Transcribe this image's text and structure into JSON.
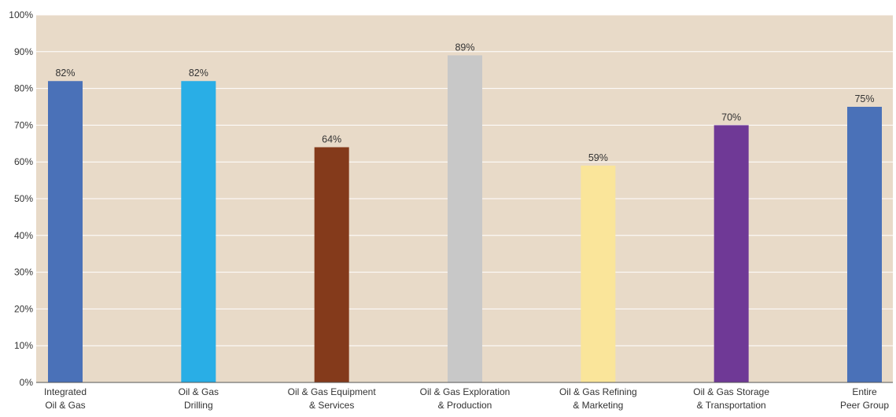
{
  "chart_data": {
    "type": "bar",
    "title": "",
    "xlabel": "",
    "ylabel": "",
    "ylim": [
      0,
      100
    ],
    "yticks": [
      0,
      10,
      20,
      30,
      40,
      50,
      60,
      70,
      80,
      90,
      100
    ],
    "ytick_labels": [
      "0%",
      "10%",
      "20%",
      "30%",
      "40%",
      "50%",
      "60%",
      "70%",
      "80%",
      "90%",
      "100%"
    ],
    "categories": [
      [
        "Integrated",
        "Oil & Gas"
      ],
      [
        "Oil & Gas",
        "Drilling"
      ],
      [
        "Oil & Gas Equipment",
        "& Services"
      ],
      [
        "Oil & Gas Exploration",
        "& Production"
      ],
      [
        "Oil & Gas Refining",
        "& Marketing"
      ],
      [
        "Oil & Gas Storage",
        "& Transportation"
      ],
      [
        "Entire",
        "Peer Group"
      ]
    ],
    "values": [
      82,
      82,
      64,
      89,
      59,
      70,
      75
    ],
    "data_labels": [
      "82%",
      "82%",
      "64%",
      "89%",
      "59%",
      "70%",
      "75%"
    ],
    "bar_colors": [
      "#4a71b8",
      "#29aee6",
      "#843a1b",
      "#c8c8c8",
      "#fae59a",
      "#6f3996",
      "#4a71b8"
    ],
    "plot_background": "#e8dac8",
    "grid": true,
    "grid_color": "#ffffff",
    "legend": "none"
  }
}
